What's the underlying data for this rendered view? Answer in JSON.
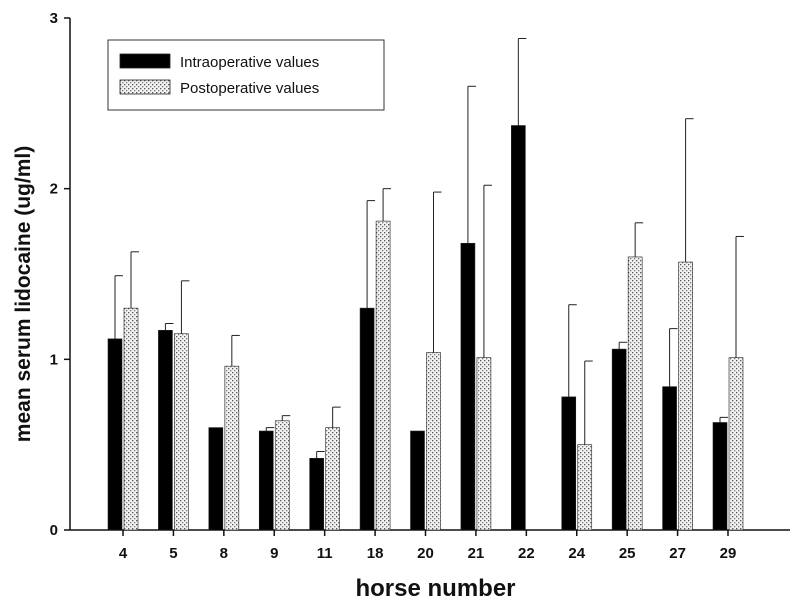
{
  "chart_data": {
    "type": "bar",
    "xlabel": "horse number",
    "ylabel": "mean serum lidocaine (ug/ml)",
    "categories": [
      "4",
      "5",
      "8",
      "9",
      "11",
      "18",
      "20",
      "21",
      "22",
      "24",
      "25",
      "27",
      "29"
    ],
    "ylim": [
      0,
      3
    ],
    "yticks": [
      "0",
      "1",
      "2",
      "3"
    ],
    "legend_position": "top-left",
    "series": [
      {
        "name": "Intraoperative values",
        "color": "#000000",
        "pattern": "solid",
        "values": [
          1.12,
          1.17,
          0.6,
          0.58,
          0.42,
          1.3,
          0.58,
          1.68,
          2.37,
          0.78,
          1.06,
          0.84,
          0.63
        ],
        "errors": [
          0.37,
          0.04,
          0.0,
          0.02,
          0.04,
          0.63,
          0.0,
          0.92,
          0.51,
          0.54,
          0.04,
          0.34,
          0.03
        ]
      },
      {
        "name": "Postoperative values",
        "color": "#d8d8d8",
        "pattern": "stipple",
        "values": [
          1.3,
          1.15,
          0.96,
          0.64,
          0.6,
          1.81,
          1.04,
          1.01,
          null,
          0.5,
          1.6,
          1.57,
          1.01
        ],
        "errors": [
          0.33,
          0.31,
          0.18,
          0.03,
          0.12,
          0.19,
          0.94,
          1.01,
          null,
          0.49,
          0.2,
          0.84,
          0.71
        ]
      }
    ],
    "grid": false
  }
}
